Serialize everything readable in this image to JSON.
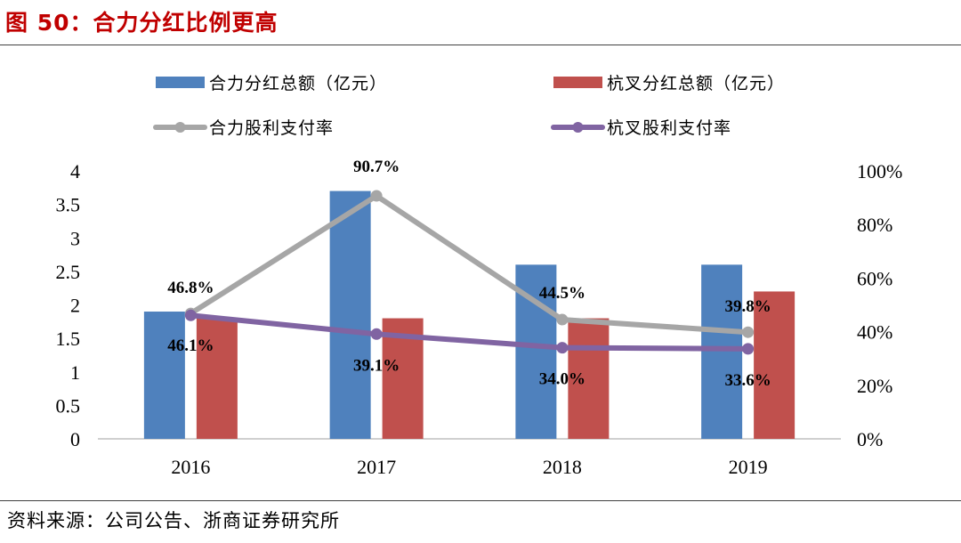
{
  "figure": {
    "title": "图 50：合力分红比例更高",
    "source": "资料来源：公司公告、浙商证券研究所"
  },
  "chart_data": {
    "type": "bar+line",
    "title": "图 50：合力分红比例更高",
    "categories": [
      "2016",
      "2017",
      "2018",
      "2019"
    ],
    "left_axis": {
      "min": 0,
      "max": 4,
      "ticks": [
        "0",
        "0.5",
        "1",
        "1.5",
        "2",
        "2.5",
        "3",
        "3.5",
        "4"
      ]
    },
    "right_axis": {
      "min": 0,
      "max": 100,
      "ticks": [
        "0%",
        "20%",
        "40%",
        "60%",
        "80%",
        "100%"
      ]
    },
    "bar_series": [
      {
        "name": "合力分红总额（亿元）",
        "color": "#4f81bd",
        "values": [
          1.9,
          3.7,
          2.6,
          2.6
        ]
      },
      {
        "name": "杭叉分红总额（亿元）",
        "color": "#c0504d",
        "values": [
          1.8,
          1.8,
          1.8,
          2.2
        ]
      }
    ],
    "line_series": [
      {
        "name": "合力股利支付率",
        "color": "#a6a6a6",
        "values": [
          46.8,
          90.7,
          44.5,
          39.8
        ],
        "labels": [
          "46.8%",
          "90.7%",
          "44.5%",
          "39.8%"
        ]
      },
      {
        "name": "杭叉股利支付率",
        "color": "#8064a2",
        "values": [
          46.1,
          39.1,
          34.0,
          33.6
        ],
        "labels": [
          "46.1%",
          "39.1%",
          "34.0%",
          "33.6%"
        ]
      }
    ],
    "grid": false,
    "legend_position": "top"
  }
}
